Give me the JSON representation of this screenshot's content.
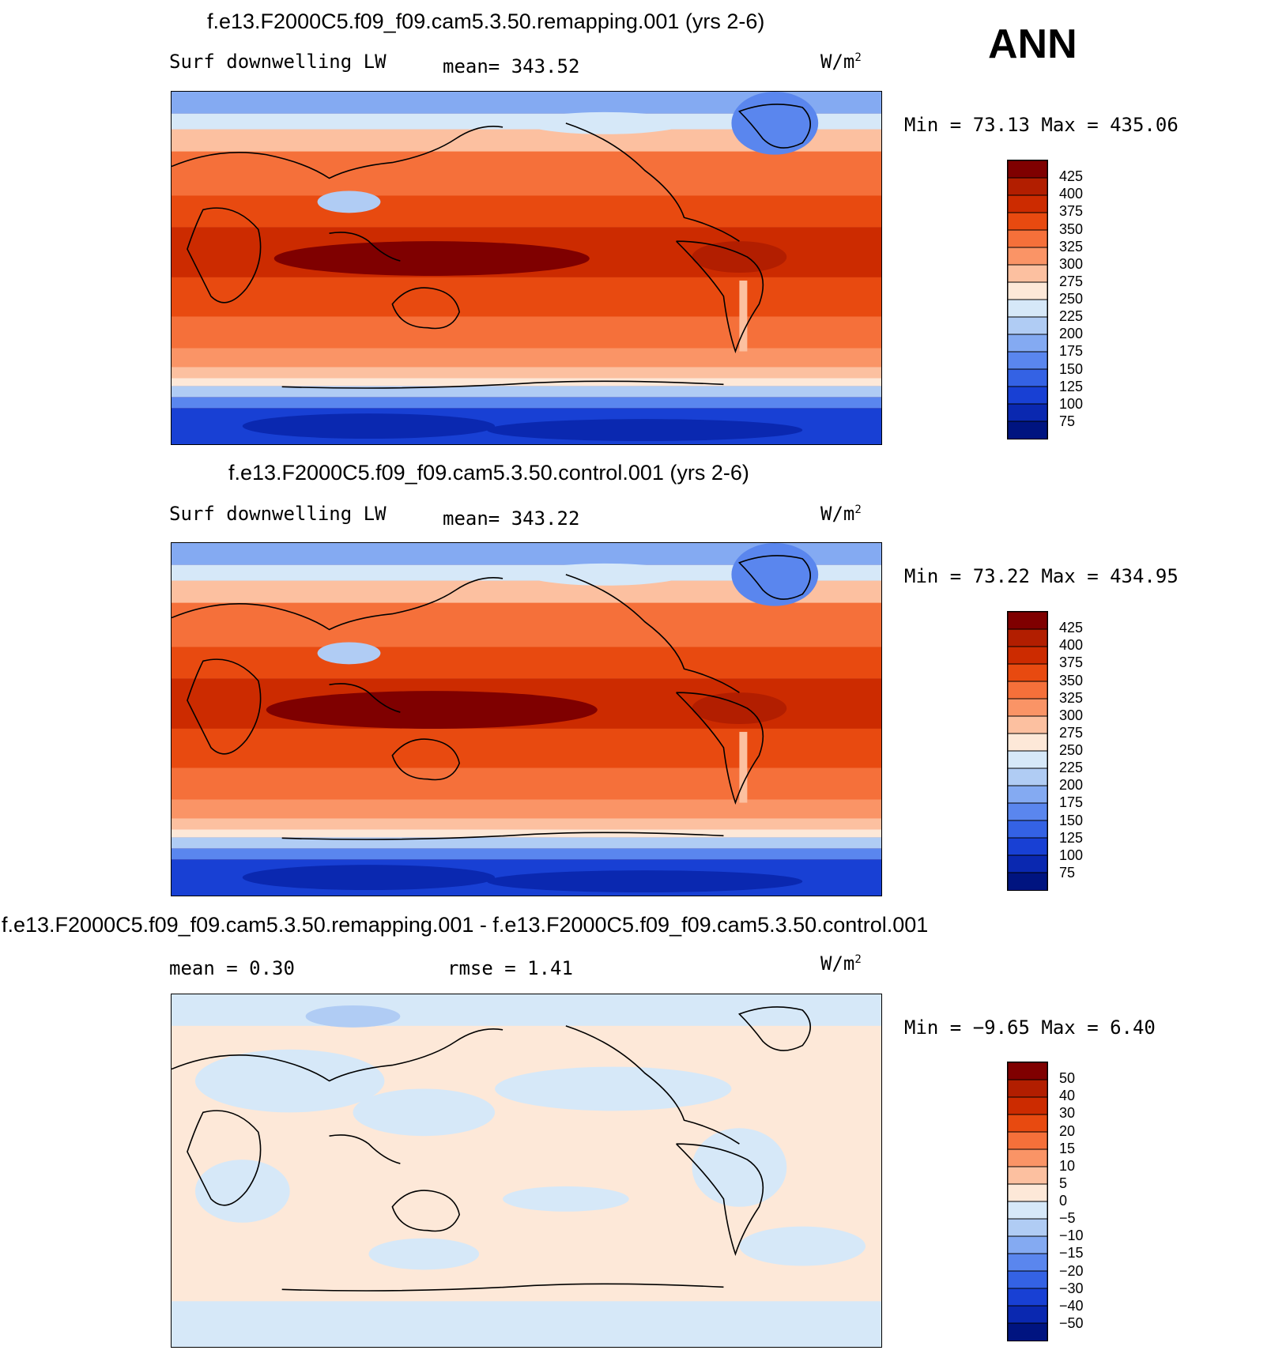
{
  "season": "ANN",
  "panels": [
    {
      "title": "f.e13.F2000C5.f09_f09.cam5.3.50.remapping.001 (yrs 2-6)",
      "left_label": "Surf downwelling LW",
      "center_label": "mean= 343.52",
      "units_base": "W/m",
      "units_exp": "2",
      "minmax": "Min =   73.13 Max = 435.06",
      "kind": "absolute"
    },
    {
      "title": "f.e13.F2000C5.f09_f09.cam5.3.50.control.001 (yrs 2-6)",
      "left_label": "Surf downwelling LW",
      "center_label": "mean= 343.22",
      "units_base": "W/m",
      "units_exp": "2",
      "minmax": "Min =   73.22 Max = 434.95",
      "kind": "absolute"
    },
    {
      "title": "f.e13.F2000C5.f09_f09.cam5.3.50.remapping.001 - f.e13.F2000C5.f09_f09.cam5.3.50.control.001",
      "left_label": "mean =    0.30",
      "center_label": "rmse =    1.41",
      "units_base": "W/m",
      "units_exp": "2",
      "minmax": "Min =  −9.65 Max =    6.40",
      "kind": "difference"
    }
  ],
  "colorbars": {
    "absolute": {
      "labels": [
        "425",
        "400",
        "375",
        "350",
        "325",
        "300",
        "275",
        "250",
        "225",
        "200",
        "175",
        "150",
        "125",
        "100",
        "75"
      ],
      "colors": [
        "#7f0000",
        "#b21e00",
        "#cc2b00",
        "#e84a10",
        "#f5703a",
        "#fa9466",
        "#fcc0a0",
        "#fde8d8",
        "#d6e8f8",
        "#b0ccf4",
        "#84aaf2",
        "#5a86ee",
        "#3462e4",
        "#1840d4",
        "#0a28b0",
        "#001480"
      ]
    },
    "difference": {
      "labels": [
        "50",
        "40",
        "30",
        "20",
        "15",
        "10",
        "5",
        "0",
        "−5",
        "−10",
        "−15",
        "−20",
        "−30",
        "−40",
        "−50"
      ],
      "colors": [
        "#7f0000",
        "#b21e00",
        "#cc2b00",
        "#e84a10",
        "#f5703a",
        "#fa9466",
        "#fcc0a0",
        "#fde8d8",
        "#d6e8f8",
        "#b0ccf4",
        "#84aaf2",
        "#5a86ee",
        "#3462e4",
        "#1840d4",
        "#0a28b0",
        "#001480"
      ]
    }
  }
}
